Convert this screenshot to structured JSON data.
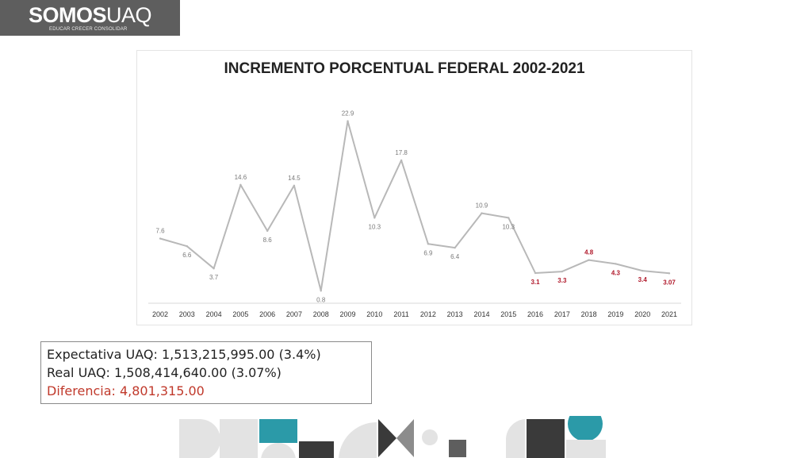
{
  "brand": {
    "name_bold": "SOMOS",
    "name_light": "UAQ",
    "tagline": "EDUCAR CRECER CONSOLIDAR"
  },
  "chart_data": {
    "type": "line",
    "title": "INCREMENTO PORCENTUAL FEDERAL 2002-2021",
    "xlabel": "",
    "ylabel": "",
    "categories": [
      "2002",
      "2003",
      "2004",
      "2005",
      "2006",
      "2007",
      "2008",
      "2009",
      "2010",
      "2011",
      "2012",
      "2013",
      "2014",
      "2015",
      "2016",
      "2017",
      "2018",
      "2019",
      "2020",
      "2021"
    ],
    "values": [
      7.6,
      6.6,
      3.7,
      14.6,
      8.6,
      14.5,
      0.8,
      22.9,
      10.3,
      17.8,
      6.9,
      6.4,
      10.9,
      10.3,
      3.1,
      3.3,
      4.8,
      4.3,
      3.4,
      3.07
    ],
    "data_labels": [
      "7.6",
      "6.6",
      "3.7",
      "14.6",
      "8.6",
      "14.5",
      "0.8",
      "22.9",
      "10.3",
      "17.8",
      "6.9",
      "6.4",
      "10.9",
      "10.3",
      "3.1",
      "3.3",
      "4.8",
      "4.3",
      "3.4",
      "3.07"
    ],
    "highlight_from": "2016",
    "ylim": [
      0,
      24
    ],
    "grid": false,
    "legend": "none",
    "colors": {
      "line": "#b8b8b8",
      "label": "#7a7a7a",
      "highlight_label": "#b0182a",
      "axis": "#d9d9d9"
    }
  },
  "summary": {
    "expectativa": "Expectativa UAQ: 1,513,215,995.00 (3.4%)",
    "real": "Real UAQ: 1,508,414,640.00 (3.07%)",
    "diferencia": "Diferencia: 4,801,315.00"
  },
  "colors": {
    "logo_bg": "#5e5e5e",
    "deco_light": "#e3e3e3",
    "deco_dark": "#3a3a3a",
    "deco_teal": "#2b9aa8",
    "deco_mid": "#8c8c8c"
  }
}
